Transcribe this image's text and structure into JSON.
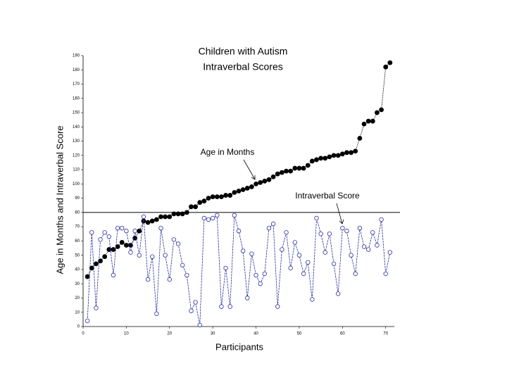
{
  "chart_data": {
    "type": "line",
    "title": "Children with Autism",
    "subtitle": "Intraverbal Scores",
    "x_label": "Participants",
    "y_label": "Age in Months and Intraverbal Score",
    "x": [
      1,
      2,
      3,
      4,
      5,
      6,
      7,
      8,
      9,
      10,
      11,
      12,
      13,
      14,
      15,
      16,
      17,
      18,
      19,
      20,
      21,
      22,
      23,
      24,
      25,
      26,
      27,
      28,
      29,
      30,
      31,
      32,
      33,
      34,
      35,
      36,
      37,
      38,
      39,
      40,
      41,
      42,
      43,
      44,
      45,
      46,
      47,
      48,
      49,
      50,
      51,
      52,
      53,
      54,
      55,
      56,
      57,
      58,
      59,
      60,
      61,
      62,
      63,
      64,
      65,
      66,
      67,
      68,
      69,
      70,
      71
    ],
    "series": [
      {
        "name": "Age in Months",
        "color": "#000000",
        "marker": "filled",
        "values": [
          35,
          41,
          44,
          46,
          49,
          54,
          54,
          56,
          59,
          57,
          57,
          62,
          67,
          74,
          73,
          74,
          75,
          77,
          77,
          77,
          79,
          79,
          79,
          80,
          84,
          84,
          87,
          88,
          90,
          91,
          91,
          91,
          92,
          92,
          94,
          95,
          96,
          97,
          98,
          100,
          101,
          102,
          103,
          105,
          107,
          108,
          109,
          109,
          111,
          111,
          111,
          113,
          116,
          117,
          118,
          118,
          119,
          120,
          120,
          121,
          122,
          122,
          123,
          132,
          142,
          144,
          144,
          150,
          152,
          182,
          185
        ]
      },
      {
        "name": "Intraverbal Score",
        "color": "#2b2f9e",
        "marker": "open",
        "values": [
          4,
          66,
          13,
          61,
          66,
          63,
          36,
          69,
          69,
          67,
          52,
          67,
          50,
          77,
          33,
          49,
          9,
          69,
          50,
          33,
          61,
          58,
          43,
          36,
          11,
          17,
          1,
          76,
          75,
          76,
          78,
          14,
          41,
          14,
          78,
          67,
          53,
          20,
          51,
          36,
          30,
          37,
          69,
          72,
          14,
          54,
          66,
          41,
          59,
          50,
          37,
          45,
          19,
          76,
          65,
          52,
          65,
          44,
          23,
          69,
          67,
          50,
          37,
          69,
          56,
          54,
          66,
          57,
          75,
          37,
          52
        ]
      }
    ],
    "hline": 80,
    "xlim": [
      0,
      72
    ],
    "xticks": [
      0,
      10,
      20,
      30,
      40,
      50,
      60,
      70
    ],
    "ylim": [
      0,
      190
    ],
    "yticks": [
      0,
      10,
      20,
      30,
      40,
      50,
      60,
      70,
      80,
      90,
      100,
      110,
      120,
      130,
      140,
      150,
      160,
      170,
      180,
      190
    ],
    "grid": false
  }
}
